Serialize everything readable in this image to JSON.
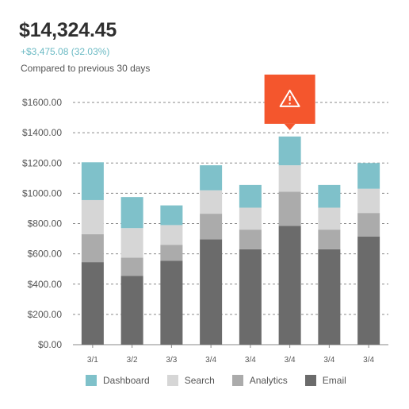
{
  "header": {
    "total": "$14,324.45",
    "change": "+$3,475.08 (32.03%)",
    "compare": "Compared to previous 30 days"
  },
  "colors": {
    "Dashboard": "#7fc1ca",
    "Search": "#d6d6d6",
    "Analytics": "#ababab",
    "Email": "#6b6b6b",
    "alert": "#f4562d"
  },
  "chart_data": {
    "type": "bar",
    "stacked": true,
    "categories": [
      "3/1",
      "3/2",
      "3/3",
      "3/4",
      "3/4",
      "3/4",
      "3/4",
      "3/4"
    ],
    "series": [
      {
        "name": "Email",
        "values": [
          545,
          455,
          555,
          695,
          630,
          785,
          630,
          715
        ]
      },
      {
        "name": "Analytics",
        "values": [
          185,
          120,
          105,
          170,
          130,
          225,
          130,
          155
        ]
      },
      {
        "name": "Search",
        "values": [
          225,
          195,
          130,
          155,
          145,
          175,
          145,
          160
        ]
      },
      {
        "name": "Dashboard",
        "values": [
          250,
          205,
          130,
          165,
          150,
          190,
          150,
          170
        ]
      }
    ],
    "ylim": [
      0,
      1600
    ],
    "yticks": [
      "$0.00",
      "$200.00",
      "$400.00",
      "$600.00",
      "$800.00",
      "$1000.00",
      "$1200.00",
      "$1400.00",
      "$1600.00"
    ],
    "ytick_values": [
      0,
      200,
      400,
      600,
      800,
      1000,
      1200,
      1400,
      1600
    ],
    "grid": true,
    "legend": [
      "Dashboard",
      "Search",
      "Analytics",
      "Email"
    ],
    "legend_position": "bottom",
    "alert_category_index": 5,
    "alert_icon": "warning-icon"
  }
}
